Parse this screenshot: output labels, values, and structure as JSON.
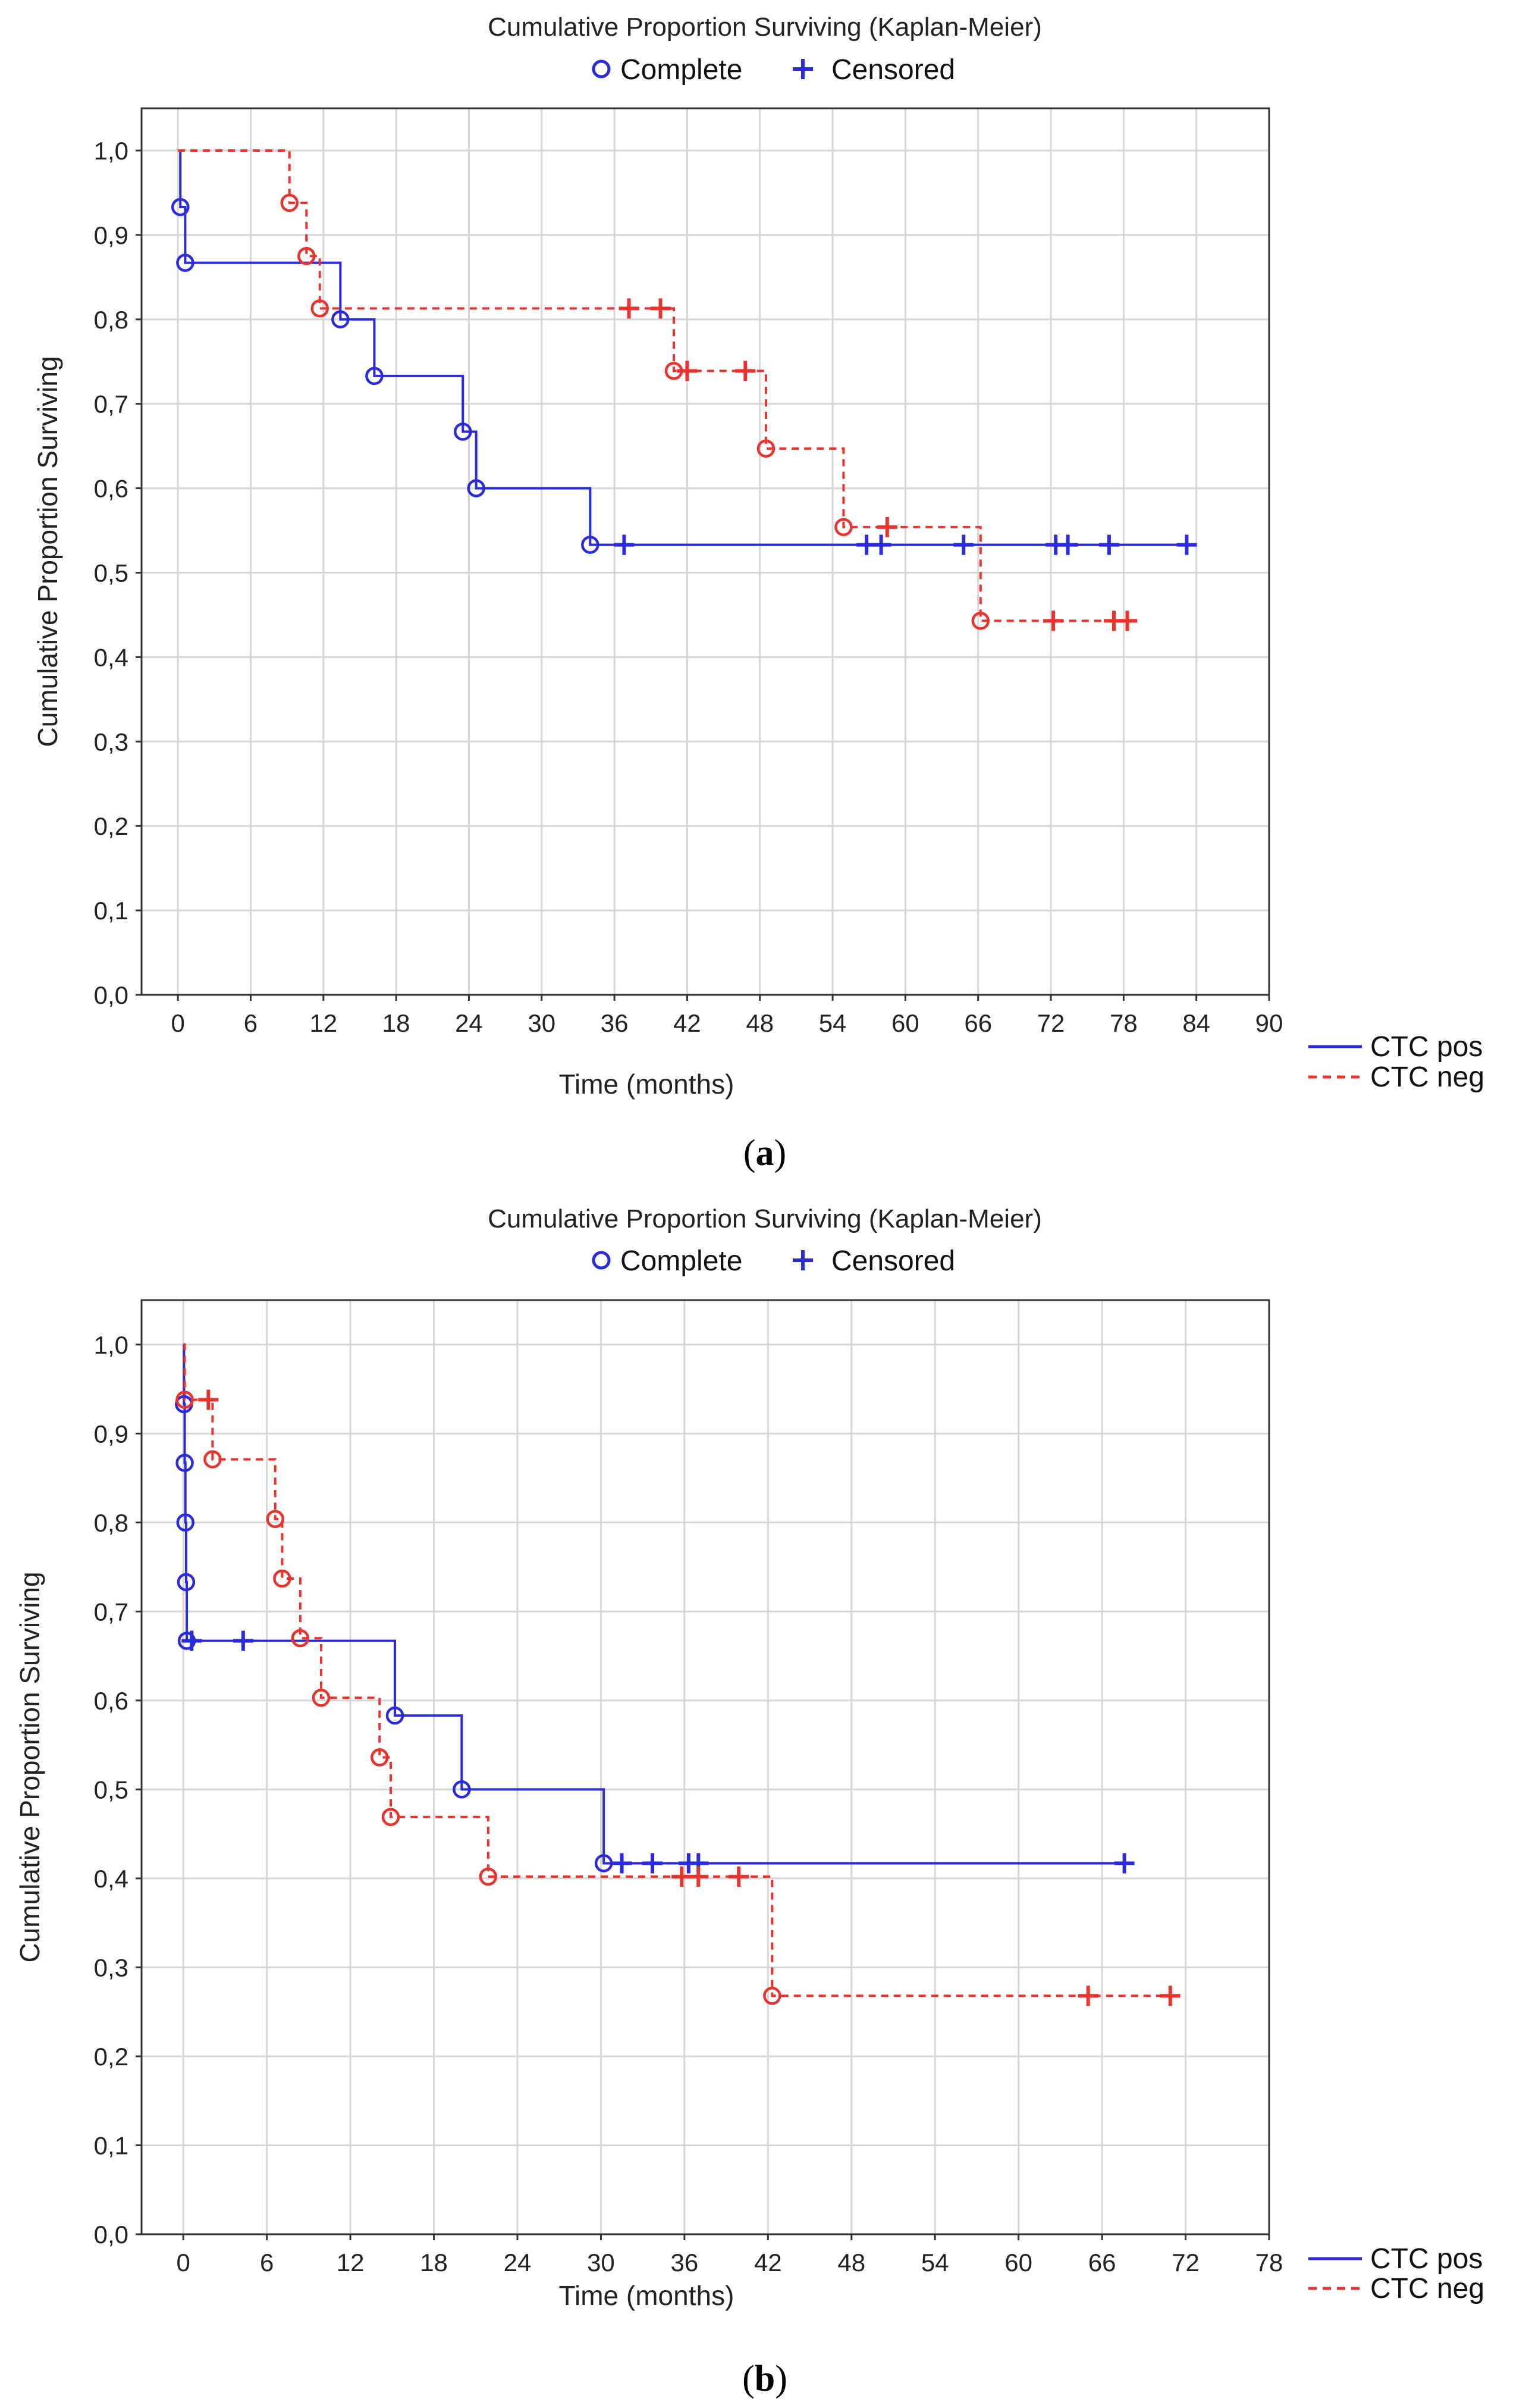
{
  "chart_data": [
    {
      "type": "line",
      "panel": "a",
      "title": "Cumulative Proportion Surviving (Kaplan-Meier)",
      "marker_legend": [
        {
          "symbol": "o",
          "label": "Complete"
        },
        {
          "symbol": "+",
          "label": "Censored"
        }
      ],
      "xlabel": "Time (months)",
      "ylabel": "Cumulative Proportion Surviving",
      "xlim": [
        -3,
        90
      ],
      "ylim": [
        0,
        1.05
      ],
      "x_ticks": [
        "0",
        "6",
        "12",
        "18",
        "24",
        "30",
        "36",
        "42",
        "48",
        "54",
        "60",
        "66",
        "72",
        "78",
        "84",
        "90"
      ],
      "x_tick_values": [
        0,
        6,
        12,
        18,
        24,
        30,
        36,
        42,
        48,
        54,
        60,
        66,
        72,
        78,
        84,
        90
      ],
      "y_ticks": [
        "0,0",
        "0,1",
        "0,2",
        "0,3",
        "0,4",
        "0,5",
        "0,6",
        "0,7",
        "0,8",
        "0,9",
        "1,0"
      ],
      "y_tick_values": [
        0,
        0.1,
        0.2,
        0.3,
        0.4,
        0.5,
        0.6,
        0.7,
        0.8,
        0.9,
        1.0
      ],
      "grid": true,
      "caption": "a",
      "series": [
        {
          "name": "CTC pos",
          "color": "#2b2bd9",
          "dash": "solid",
          "start": 1.0,
          "events": [
            [
              0.2,
              0.933
            ],
            [
              0.6,
              0.867
            ],
            [
              13.4,
              0.8
            ],
            [
              16.2,
              0.733
            ],
            [
              23.5,
              0.667
            ],
            [
              24.6,
              0.6
            ],
            [
              34.0,
              0.533
            ]
          ],
          "censored": [
            [
              36.8,
              0.533
            ],
            [
              56.8,
              0.533
            ],
            [
              58.0,
              0.533
            ],
            [
              64.8,
              0.533
            ],
            [
              72.4,
              0.533
            ],
            [
              73.4,
              0.533
            ],
            [
              76.8,
              0.533
            ],
            [
              83.2,
              0.533
            ]
          ],
          "end": 83.2
        },
        {
          "name": "CTC neg",
          "color": "#e8332f",
          "dash": "dashed",
          "start": 1.0,
          "events": [
            [
              9.2,
              0.938
            ],
            [
              10.6,
              0.875
            ],
            [
              11.7,
              0.813
            ],
            [
              40.9,
              0.739
            ],
            [
              48.5,
              0.647
            ],
            [
              54.9,
              0.554
            ],
            [
              66.2,
              0.443
            ]
          ],
          "censored": [
            [
              37.2,
              0.813
            ],
            [
              39.8,
              0.813
            ],
            [
              42.0,
              0.739
            ],
            [
              46.8,
              0.739
            ],
            [
              58.5,
              0.554
            ],
            [
              72.2,
              0.443
            ],
            [
              77.2,
              0.443
            ],
            [
              78.3,
              0.443
            ]
          ],
          "end": 78.3
        }
      ]
    },
    {
      "type": "line",
      "panel": "b",
      "title": "Cumulative Proportion Surviving (Kaplan-Meier)",
      "marker_legend": [
        {
          "symbol": "o",
          "label": "Complete"
        },
        {
          "symbol": "+",
          "label": "Censored"
        }
      ],
      "xlabel": "Time (months)",
      "ylabel": "Cumulative Proportion Surviving",
      "xlim": [
        -3,
        78
      ],
      "ylim": [
        0,
        1.05
      ],
      "x_ticks": [
        "0",
        "6",
        "12",
        "18",
        "24",
        "30",
        "36",
        "42",
        "48",
        "54",
        "60",
        "66",
        "72",
        "78"
      ],
      "x_tick_values": [
        0,
        6,
        12,
        18,
        24,
        30,
        36,
        42,
        48,
        54,
        60,
        66,
        72,
        78
      ],
      "y_ticks": [
        "0,0",
        "0,1",
        "0,2",
        "0,3",
        "0,4",
        "0,5",
        "0,6",
        "0,7",
        "0,8",
        "0,9",
        "1,0"
      ],
      "y_tick_values": [
        0,
        0.1,
        0.2,
        0.3,
        0.4,
        0.5,
        0.6,
        0.7,
        0.8,
        0.9,
        1.0
      ],
      "grid": true,
      "caption": "b",
      "series": [
        {
          "name": "CTC pos",
          "color": "#2b2bd9",
          "dash": "solid",
          "start": 1.0,
          "events": [
            [
              0.05,
              0.933
            ],
            [
              0.1,
              0.867
            ],
            [
              0.15,
              0.8
            ],
            [
              0.2,
              0.733
            ],
            [
              0.25,
              0.667
            ],
            [
              15.2,
              0.583
            ],
            [
              20.0,
              0.5
            ],
            [
              30.2,
              0.417
            ]
          ],
          "censored": [
            [
              0.6,
              0.667
            ],
            [
              4.3,
              0.667
            ],
            [
              31.5,
              0.417
            ],
            [
              33.7,
              0.417
            ],
            [
              36.3,
              0.417
            ],
            [
              37.0,
              0.417
            ],
            [
              67.6,
              0.417
            ]
          ],
          "end": 67.6
        },
        {
          "name": "CTC neg",
          "color": "#e8332f",
          "dash": "dashed",
          "start": 1.0,
          "events": [
            [
              0.1,
              0.938
            ],
            [
              2.1,
              0.871
            ],
            [
              6.6,
              0.804
            ],
            [
              7.1,
              0.737
            ],
            [
              8.4,
              0.67
            ],
            [
              9.9,
              0.603
            ],
            [
              14.1,
              0.536
            ],
            [
              14.9,
              0.469
            ],
            [
              21.9,
              0.402
            ],
            [
              42.3,
              0.268
            ]
          ],
          "censored": [
            [
              1.8,
              0.938
            ],
            [
              35.8,
              0.402
            ],
            [
              37.0,
              0.402
            ],
            [
              39.9,
              0.402
            ],
            [
              65.0,
              0.268
            ],
            [
              70.9,
              0.268
            ]
          ],
          "end": 70.9
        }
      ]
    }
  ]
}
